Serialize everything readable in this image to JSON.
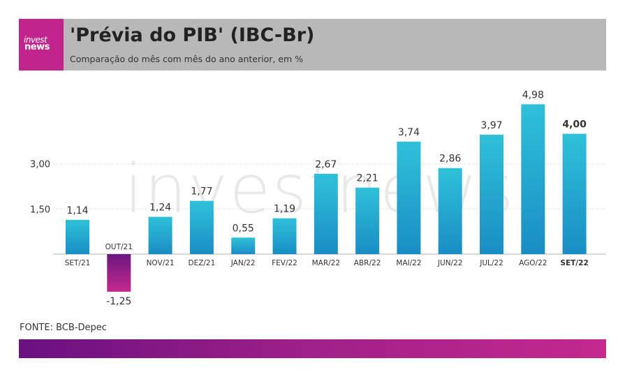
{
  "brand": {
    "logo_line1": "invest",
    "logo_line2": "news",
    "watermark": "investnews"
  },
  "header": {
    "title": "'Prévia do PIB' (IBC-Br)",
    "subtitle": "Comparação do mês com mês do ano anterior, em %"
  },
  "source": "FONTE: BCB-Depec",
  "colors": {
    "positive_bar_top": "#2fc1d9",
    "positive_bar_bottom": "#1a8dc4",
    "negative_bar_top": "#6a1880",
    "negative_bar_bottom": "#c6298f",
    "header_bg": "#b8b8b8",
    "logo_bg": "#c2248d"
  },
  "chart_data": {
    "type": "bar",
    "categories": [
      "SET/21",
      "OUT/21",
      "NOV/21",
      "DEZ/21",
      "JAN/22",
      "FEV/22",
      "MAR/22",
      "ABR/22",
      "MAI/22",
      "JUN/22",
      "JUL/22",
      "AGO/22",
      "SET/22"
    ],
    "values": [
      1.14,
      -1.25,
      1.24,
      1.77,
      0.55,
      1.19,
      2.67,
      2.21,
      3.74,
      2.86,
      3.97,
      4.98,
      4.0
    ],
    "value_labels": [
      "1,14",
      "-1,25",
      "1,24",
      "1,77",
      "0,55",
      "1,19",
      "2,67",
      "2,21",
      "3,74",
      "2,86",
      "3,97",
      "4,98",
      "4,00"
    ],
    "yticks": [
      1.5,
      3.0
    ],
    "ytick_labels": [
      "1,50",
      "3,00"
    ],
    "highlight": "SET/22",
    "grid": true,
    "legend": false,
    "title": "'Prévia do PIB' (IBC-Br)",
    "subtitle": "Comparação do mês com mês do ano anterior, em %"
  }
}
